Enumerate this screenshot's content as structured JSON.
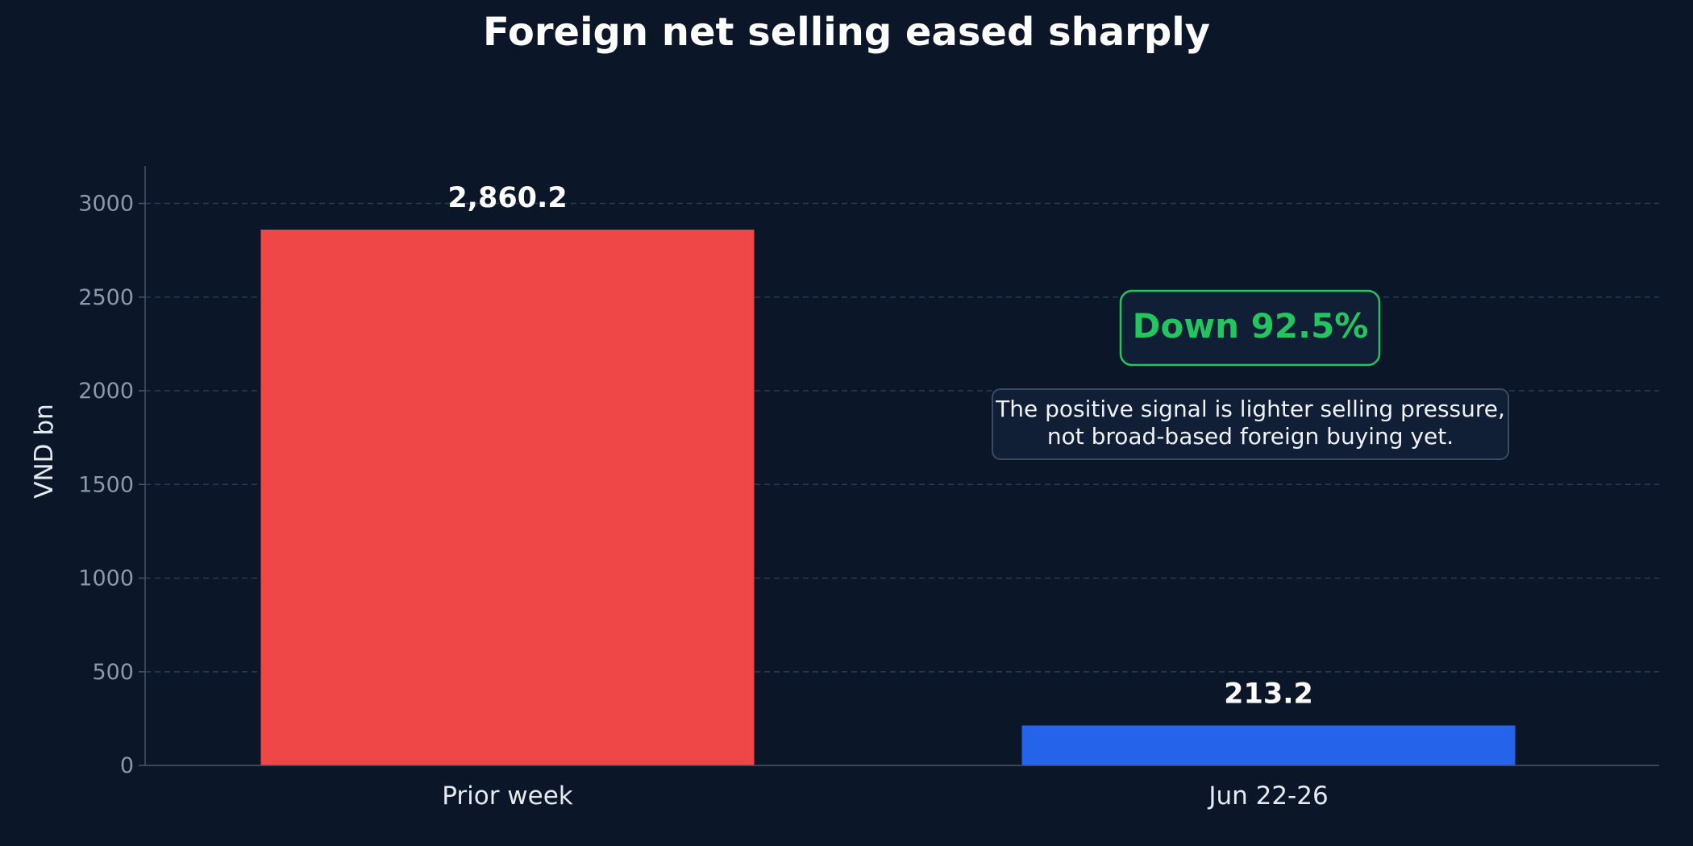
{
  "chart_data": {
    "type": "bar",
    "title": "Foreign net selling eased sharply",
    "xlabel": "",
    "ylabel": "VND bn",
    "categories": [
      "Prior week",
      "Jun 22-26"
    ],
    "values": [
      2860.2,
      213.2
    ],
    "value_labels": [
      "2,860.2",
      "213.2"
    ],
    "bar_colors": [
      "#ef4747",
      "#2563eb"
    ],
    "ylim": [
      0,
      3200
    ],
    "yticks": [
      0,
      500,
      1000,
      1500,
      2000,
      2500,
      3000
    ],
    "grid": true,
    "annotations": {
      "badge": "Down 92.5%",
      "badge_color": "#22c55e",
      "note_lines": [
        "The positive signal is lighter selling pressure,",
        "not broad-based foreign buying yet."
      ]
    }
  },
  "colors": {
    "background": "#0b1628",
    "grid": "#2a3a52",
    "axis": "#46556b"
  }
}
